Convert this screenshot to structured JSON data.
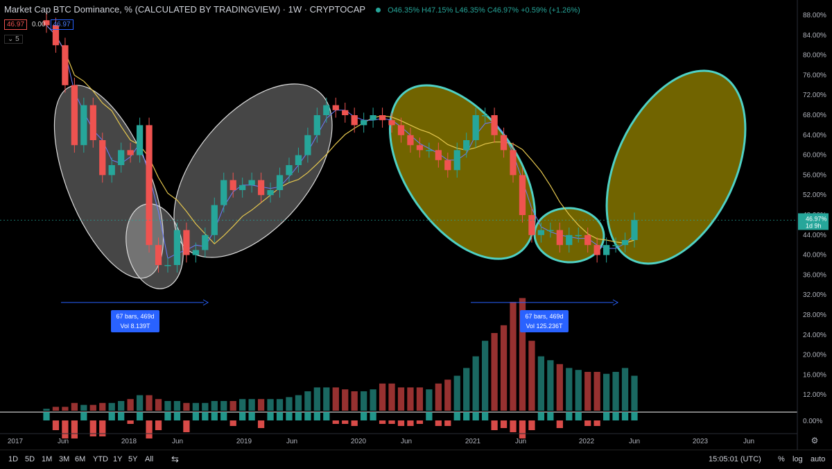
{
  "header": {
    "title": "Market Cap BTC Dominance, % (CALCULATED BY TRADINGVIEW) · 1W · CRYPTOCAP",
    "ohlc": "O46.35% H47.15% L46.35% C46.97% +0.59% (+1.26%)"
  },
  "indicator_values": [
    "46.97",
    "0.00",
    "46.97"
  ],
  "indicator_colors": [
    "#ef5350",
    "#ffffff",
    "#2962ff"
  ],
  "hidden_count": "5",
  "price_axis": {
    "ticks": [
      "88.00%",
      "84.00%",
      "80.00%",
      "76.00%",
      "72.00%",
      "68.00%",
      "64.00%",
      "60.00%",
      "56.00%",
      "52.00%",
      "48.00%",
      "44.00%",
      "40.00%",
      "36.00%",
      "32.00%",
      "28.00%",
      "24.00%",
      "20.00%",
      "16.00%",
      "12.00%"
    ],
    "last_price": "46.97%",
    "countdown": "1d 9h",
    "osc_tick": "0.00%"
  },
  "time_axis": [
    "2017",
    "Jun",
    "2018",
    "Jun",
    "2019",
    "Jun",
    "2020",
    "Jun",
    "2021",
    "Jun",
    "2022",
    "Jun",
    "2023",
    "Jun"
  ],
  "measures": [
    {
      "line1": "67 bars, 469d",
      "line2": "Vol 8.139T"
    },
    {
      "line1": "67 bars, 469d",
      "line2": "Vol 125.236T"
    }
  ],
  "toolbar": {
    "ranges": [
      "1D",
      "5D",
      "1M",
      "3M",
      "6M",
      "YTD",
      "1Y",
      "5Y",
      "All"
    ],
    "clock": "15:05:01 (UTC)",
    "percent": "%",
    "log": "log",
    "auto": "auto"
  },
  "colors": {
    "up": "#26a69a",
    "down": "#ef5350",
    "accent": "#2962ff",
    "ellipse_fill": "#8a7a00",
    "ellipse_stroke": "#4fd1c5",
    "ma_yellow": "#e6c84f"
  },
  "chart_data": {
    "type": "candlestick",
    "interval": "1W",
    "ylim": [
      32,
      90
    ],
    "x": [
      "2017-01",
      "2017-03",
      "2017-04",
      "2017-05",
      "2017-06",
      "2017-07",
      "2017-08",
      "2017-09",
      "2017-10",
      "2017-11",
      "2017-12",
      "2018-01",
      "2018-02",
      "2018-03",
      "2018-04",
      "2018-05",
      "2018-06",
      "2018-07",
      "2018-08",
      "2018-09",
      "2018-10",
      "2018-11",
      "2018-12",
      "2019-01",
      "2019-02",
      "2019-03",
      "2019-04",
      "2019-05",
      "2019-06",
      "2019-07",
      "2019-08",
      "2019-09",
      "2019-10",
      "2019-11",
      "2019-12",
      "2020-01",
      "2020-02",
      "2020-03",
      "2020-04",
      "2020-05",
      "2020-06",
      "2020-07",
      "2020-08",
      "2020-09",
      "2020-10",
      "2020-11",
      "2020-12",
      "2021-01",
      "2021-02",
      "2021-03",
      "2021-04",
      "2021-05",
      "2021-06",
      "2021-07",
      "2021-08",
      "2021-09",
      "2021-10",
      "2021-11",
      "2021-12",
      "2022-01",
      "2022-02",
      "2022-03",
      "2022-04",
      "2022-05"
    ],
    "close": [
      86,
      82,
      74,
      62,
      70,
      63,
      56,
      58,
      61,
      60,
      66,
      42,
      38,
      38,
      45,
      40,
      41,
      44,
      50,
      55,
      53,
      54,
      55,
      52,
      53,
      56,
      58,
      60,
      64,
      68,
      70,
      69,
      68,
      66,
      67,
      68,
      67,
      66,
      64,
      62,
      61,
      61,
      59,
      57,
      61,
      63,
      68,
      68,
      64,
      61,
      56,
      48,
      44,
      45,
      45,
      42,
      44,
      44,
      42,
      40,
      42,
      42,
      43,
      47
    ],
    "volume": [
      0.5,
      1,
      1,
      2,
      1.5,
      1.5,
      2,
      2,
      2.5,
      3,
      4,
      4,
      3,
      2.5,
      2.5,
      2,
      2,
      2,
      2.5,
      2.5,
      2.5,
      3,
      3,
      3,
      3,
      3,
      3.5,
      4,
      5,
      6,
      6,
      6,
      5.5,
      5,
      5,
      5.5,
      7,
      7,
      6,
      6,
      6,
      5.5,
      7,
      8,
      9,
      11,
      14,
      18,
      20,
      22,
      28,
      29,
      18,
      14,
      13,
      12,
      11,
      10.5,
      10,
      10,
      9.5,
      10,
      11,
      9
    ],
    "measures": [
      {
        "from": "2017-01",
        "to": "2018-05",
        "bars": 67,
        "days": 469
      },
      {
        "from": "2021-01",
        "to": "2022-05",
        "bars": 67,
        "days": 469
      }
    ]
  }
}
